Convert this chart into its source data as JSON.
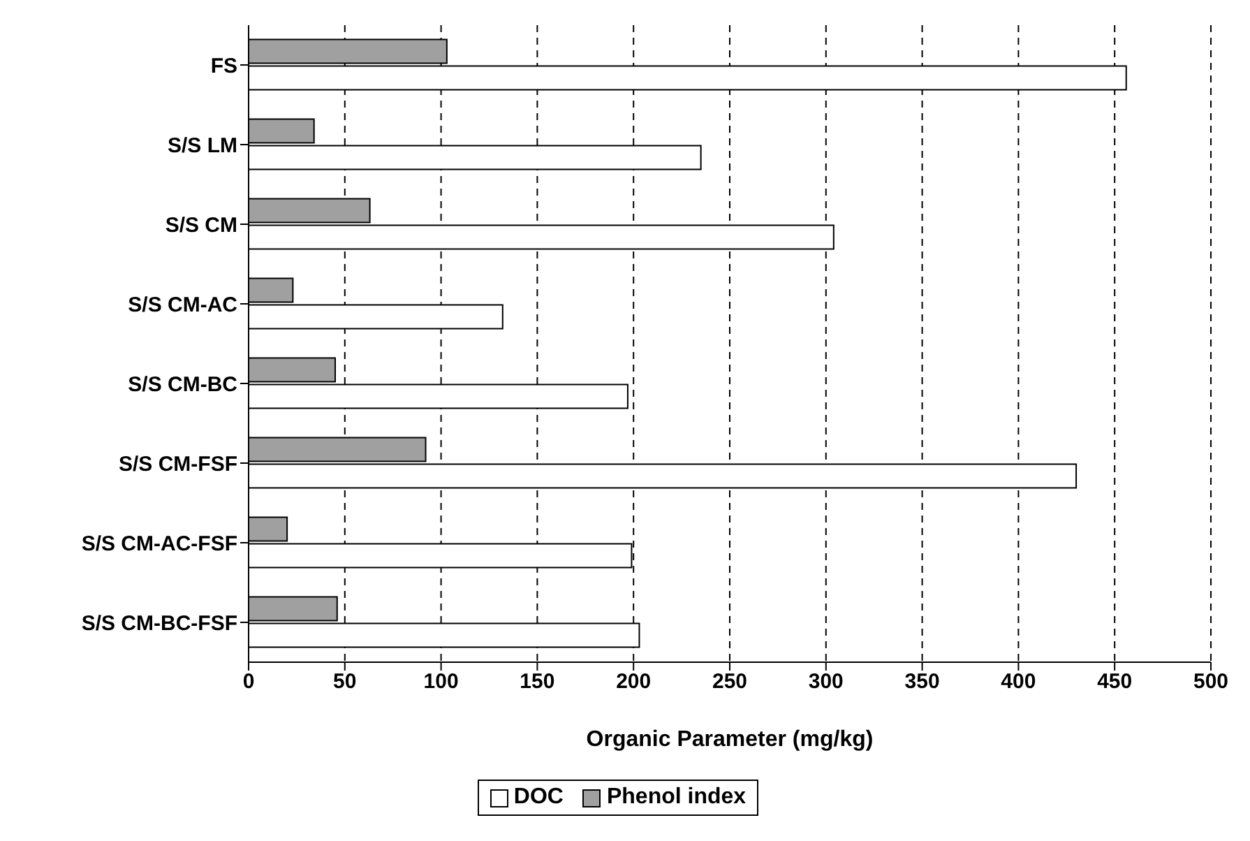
{
  "chart_data": {
    "type": "bar",
    "orientation": "horizontal",
    "xlabel": "Organic Parameter (mg/kg)",
    "categories": [
      "FS",
      "S/S LM",
      "S/S CM",
      "S/S CM-AC",
      "S/S CM-BC",
      "S/S CM-FSF",
      "S/S CM-AC-FSF",
      "S/S CM-BC-FSF"
    ],
    "series": [
      {
        "name": "DOC",
        "color": "#ffffff",
        "values": [
          456,
          235,
          304,
          132,
          197,
          430,
          199,
          203
        ]
      },
      {
        "name": "Phenol index",
        "color": "#a0a0a0",
        "values": [
          103,
          34,
          63,
          23,
          45,
          92,
          20,
          46
        ]
      }
    ],
    "xlim": [
      0,
      500
    ],
    "xticks": [
      0,
      50,
      100,
      150,
      200,
      250,
      300,
      350,
      400,
      450,
      500
    ],
    "grid": "x",
    "legend": "bottom"
  }
}
